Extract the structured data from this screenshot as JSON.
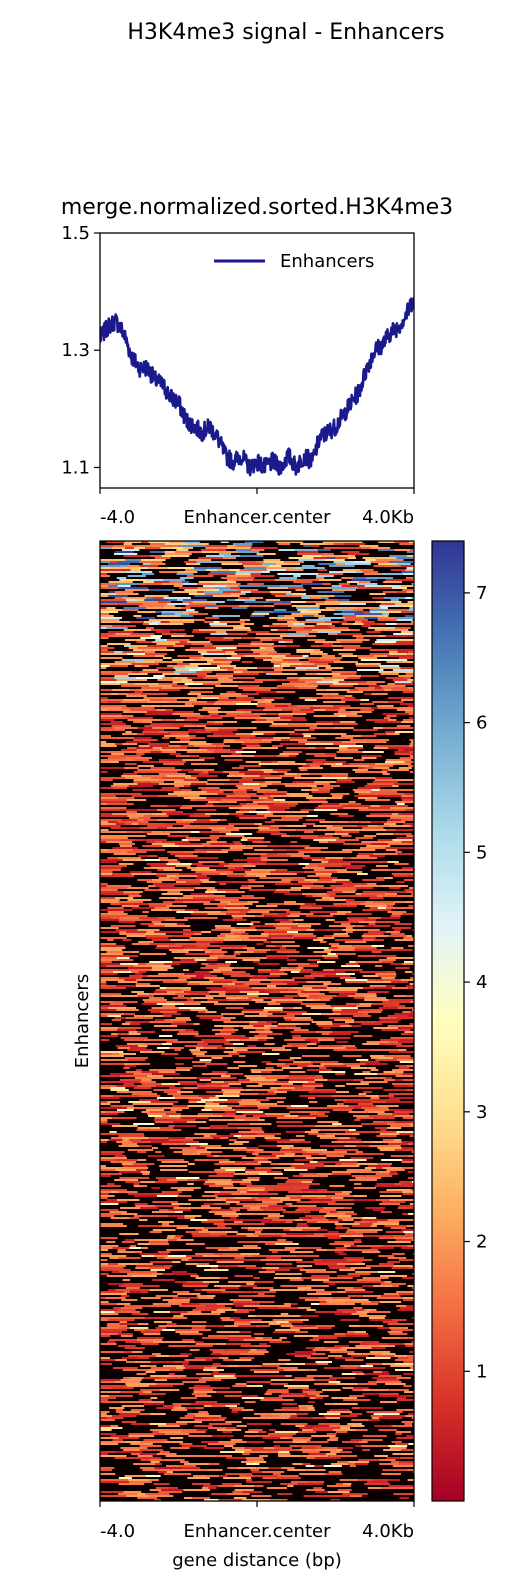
{
  "figure": {
    "suptitle": "H3K4me3 signal - Enhancers"
  },
  "chart_data": [
    {
      "type": "line",
      "title": "merge.normalized.sorted.H3K4me3",
      "xlabel": "",
      "ylabel": "",
      "x_tick_labels": [
        "-4.0",
        "Enhancer.center",
        "4.0Kb"
      ],
      "y_tick_labels": [
        "1.1",
        "1.3",
        "1.5"
      ],
      "y_ticks": [
        1.1,
        1.3,
        1.5
      ],
      "ylim": [
        1.065,
        1.5
      ],
      "xlim": [
        -4.0,
        4.0
      ],
      "legend": {
        "position": "top-right",
        "entries": [
          "Enhancers"
        ]
      },
      "color": "#1a1a8c",
      "series": [
        {
          "name": "Enhancers",
          "x": [
            -4.0,
            -3.8,
            -3.6,
            -3.4,
            -3.2,
            -3.0,
            -2.8,
            -2.6,
            -2.4,
            -2.2,
            -2.0,
            -1.8,
            -1.6,
            -1.4,
            -1.2,
            -1.0,
            -0.8,
            -0.6,
            -0.4,
            -0.2,
            0.0,
            0.2,
            0.4,
            0.6,
            0.8,
            1.0,
            1.2,
            1.4,
            1.6,
            1.8,
            2.0,
            2.2,
            2.4,
            2.6,
            2.8,
            3.0,
            3.2,
            3.4,
            3.6,
            3.8,
            4.0
          ],
          "values": [
            1.32,
            1.34,
            1.35,
            1.33,
            1.29,
            1.27,
            1.27,
            1.25,
            1.24,
            1.22,
            1.21,
            1.18,
            1.17,
            1.16,
            1.17,
            1.15,
            1.12,
            1.11,
            1.12,
            1.1,
            1.11,
            1.1,
            1.11,
            1.1,
            1.12,
            1.1,
            1.12,
            1.11,
            1.15,
            1.16,
            1.17,
            1.19,
            1.21,
            1.23,
            1.27,
            1.3,
            1.31,
            1.33,
            1.34,
            1.36,
            1.39
          ]
        }
      ]
    },
    {
      "type": "heatmap",
      "title": "",
      "xlabel": "gene distance (bp)",
      "ylabel": "Enhancers",
      "x_tick_labels": [
        "-4.0",
        "Enhancer.center",
        "4.0Kb"
      ],
      "colorbar": {
        "vmin": 0.0,
        "vmax": 7.4,
        "tick_values": [
          1,
          2,
          3,
          4,
          5,
          6,
          7
        ],
        "tick_labels": [
          "1",
          "2",
          "3",
          "4",
          "5",
          "6",
          "7"
        ],
        "colormap": [
          "#a50026",
          "#d73027",
          "#f46d43",
          "#fdae61",
          "#fee090",
          "#ffffbf",
          "#e0f3f8",
          "#abd9e9",
          "#74add1",
          "#4575b4",
          "#313695"
        ]
      }
    }
  ]
}
